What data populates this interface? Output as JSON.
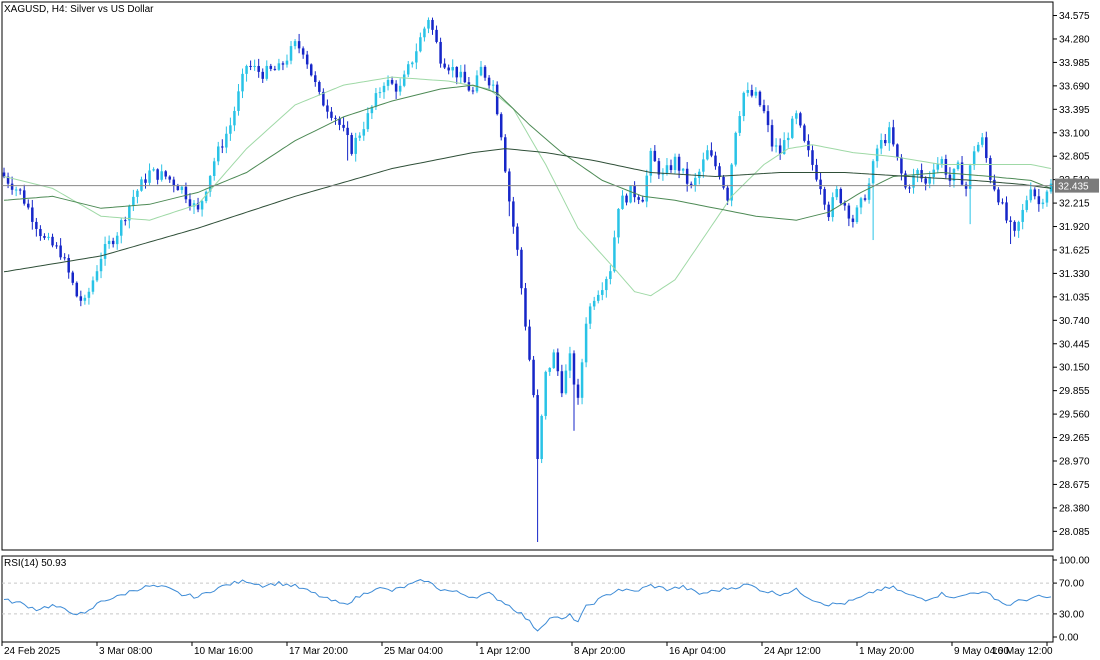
{
  "window": {
    "title": "XAGUSD, H4:  Silver vs US Dollar",
    "current_price": "32.435",
    "rsi_label": "RSI(14) 50.93"
  },
  "colors": {
    "bull": "#29c3e6",
    "bear": "#1626c8",
    "ma_fast": "#9fd9a6",
    "ma_mid": "#4d8a55",
    "ma_slow": "#2f4f38",
    "rsi": "#3d8bd6",
    "grid": "#c8c8c8",
    "price_line": "#8a8a8a"
  },
  "chart_data": [
    {
      "type": "candlestick",
      "title": "XAGUSD, H4:  Silver vs US Dollar",
      "ylim": [
        27.85,
        34.72
      ],
      "y_ticks": [
        "34.575",
        "34.280",
        "33.985",
        "33.690",
        "33.395",
        "33.100",
        "32.805",
        "32.510",
        "32.215",
        "31.920",
        "31.625",
        "31.330",
        "31.035",
        "30.740",
        "30.445",
        "30.150",
        "29.855",
        "29.560",
        "29.265",
        "28.970",
        "28.675",
        "28.380",
        "28.085"
      ],
      "x_labels": [
        "24 Feb 2025",
        "3 Mar 08:00",
        "10 Mar 16:00",
        "17 Mar 20:00",
        "25 Mar 04:00",
        "1 Apr 12:00",
        "8 Apr 20:00",
        "16 Apr 04:00",
        "24 Apr 12:00",
        "1 May 20:00",
        "9 May 04:00",
        "16 May 12:00"
      ],
      "current_price": 32.435,
      "close_anchors": [
        [
          0,
          32.55
        ],
        [
          4,
          32.35
        ],
        [
          8,
          31.95
        ],
        [
          10,
          31.75
        ],
        [
          14,
          31.6
        ],
        [
          18,
          31.05
        ],
        [
          20,
          30.95
        ],
        [
          24,
          31.55
        ],
        [
          28,
          31.85
        ],
        [
          32,
          32.3
        ],
        [
          36,
          32.6
        ],
        [
          40,
          32.55
        ],
        [
          44,
          32.4
        ],
        [
          48,
          32.1
        ],
        [
          52,
          32.75
        ],
        [
          56,
          33.2
        ],
        [
          60,
          33.95
        ],
        [
          64,
          33.85
        ],
        [
          68,
          33.9
        ],
        [
          72,
          34.2
        ],
        [
          74,
          34.15
        ],
        [
          78,
          33.55
        ],
        [
          82,
          33.3
        ],
        [
          86,
          32.9
        ],
        [
          90,
          33.3
        ],
        [
          94,
          33.75
        ],
        [
          98,
          33.65
        ],
        [
          102,
          34.15
        ],
        [
          105,
          34.55
        ],
        [
          108,
          34.05
        ],
        [
          112,
          33.85
        ],
        [
          116,
          33.6
        ],
        [
          118,
          33.9
        ],
        [
          121,
          33.7
        ],
        [
          123,
          33.1
        ],
        [
          125,
          32.25
        ],
        [
          127,
          31.6
        ],
        [
          129,
          30.7
        ],
        [
          131,
          29.8
        ],
        [
          132,
          28.95
        ],
        [
          134,
          30.05
        ],
        [
          136,
          30.3
        ],
        [
          138,
          29.9
        ],
        [
          140,
          30.25
        ],
        [
          142,
          29.7
        ],
        [
          144,
          30.75
        ],
        [
          146,
          31.05
        ],
        [
          148,
          31.2
        ],
        [
          150,
          31.4
        ],
        [
          152,
          32.2
        ],
        [
          155,
          32.35
        ],
        [
          158,
          32.3
        ],
        [
          160,
          32.8
        ],
        [
          163,
          32.55
        ],
        [
          166,
          32.75
        ],
        [
          170,
          32.4
        ],
        [
          172,
          32.6
        ],
        [
          174,
          32.85
        ],
        [
          177,
          32.6
        ],
        [
          179,
          32.3
        ],
        [
          181,
          33.15
        ],
        [
          183,
          33.6
        ],
        [
          186,
          33.55
        ],
        [
          188,
          33.35
        ],
        [
          190,
          32.95
        ],
        [
          192,
          32.85
        ],
        [
          194,
          33.1
        ],
        [
          196,
          33.3
        ],
        [
          198,
          32.95
        ],
        [
          200,
          32.7
        ],
        [
          202,
          32.45
        ],
        [
          204,
          32.1
        ],
        [
          206,
          32.35
        ],
        [
          208,
          32.2
        ],
        [
          210,
          32.0
        ],
        [
          212,
          32.2
        ],
        [
          214,
          32.45
        ],
        [
          216,
          32.9
        ],
        [
          219,
          33.1
        ],
        [
          221,
          32.75
        ],
        [
          223,
          32.4
        ],
        [
          226,
          32.6
        ],
        [
          228,
          32.45
        ],
        [
          230,
          32.7
        ],
        [
          232,
          32.75
        ],
        [
          234,
          32.5
        ],
        [
          236,
          32.65
        ],
        [
          238,
          32.4
        ],
        [
          240,
          32.9
        ],
        [
          242,
          33.0
        ],
        [
          244,
          32.55
        ],
        [
          246,
          32.3
        ],
        [
          248,
          32.0
        ],
        [
          250,
          31.8
        ],
        [
          252,
          32.1
        ],
        [
          254,
          32.45
        ],
        [
          256,
          32.2
        ],
        [
          258,
          32.4
        ],
        [
          259,
          32.435
        ]
      ],
      "low_spikes": [
        [
          85,
          32.75
        ],
        [
          125,
          32.05
        ],
        [
          132,
          27.95
        ],
        [
          141,
          29.35
        ],
        [
          215,
          31.75
        ],
        [
          239,
          31.95
        ],
        [
          249,
          31.7
        ]
      ],
      "moving_average_anchors": {
        "fast": [
          [
            0,
            32.55
          ],
          [
            12,
            32.4
          ],
          [
            24,
            32.05
          ],
          [
            36,
            32.0
          ],
          [
            48,
            32.2
          ],
          [
            60,
            32.9
          ],
          [
            72,
            33.45
          ],
          [
            84,
            33.7
          ],
          [
            96,
            33.8
          ],
          [
            110,
            33.75
          ],
          [
            120,
            33.65
          ],
          [
            126,
            33.4
          ],
          [
            134,
            32.7
          ],
          [
            142,
            31.9
          ],
          [
            150,
            31.45
          ],
          [
            156,
            31.1
          ],
          [
            160,
            31.05
          ],
          [
            166,
            31.25
          ],
          [
            172,
            31.7
          ],
          [
            180,
            32.3
          ],
          [
            188,
            32.7
          ],
          [
            194,
            32.9
          ],
          [
            200,
            32.95
          ],
          [
            210,
            32.85
          ],
          [
            220,
            32.8
          ],
          [
            232,
            32.7
          ],
          [
            244,
            32.7
          ],
          [
            254,
            32.7
          ],
          [
            259,
            32.65
          ]
        ],
        "mid": [
          [
            0,
            32.25
          ],
          [
            12,
            32.3
          ],
          [
            24,
            32.15
          ],
          [
            36,
            32.2
          ],
          [
            48,
            32.35
          ],
          [
            60,
            32.6
          ],
          [
            72,
            33.0
          ],
          [
            84,
            33.3
          ],
          [
            96,
            33.5
          ],
          [
            108,
            33.65
          ],
          [
            116,
            33.7
          ],
          [
            122,
            33.6
          ],
          [
            130,
            33.2
          ],
          [
            138,
            32.85
          ],
          [
            148,
            32.5
          ],
          [
            158,
            32.3
          ],
          [
            166,
            32.25
          ],
          [
            176,
            32.15
          ],
          [
            186,
            32.05
          ],
          [
            196,
            32.0
          ],
          [
            204,
            32.1
          ],
          [
            212,
            32.35
          ],
          [
            220,
            32.55
          ],
          [
            232,
            32.6
          ],
          [
            244,
            32.55
          ],
          [
            254,
            32.5
          ],
          [
            259,
            32.4
          ]
        ],
        "slow": [
          [
            0,
            31.35
          ],
          [
            24,
            31.55
          ],
          [
            48,
            31.9
          ],
          [
            72,
            32.3
          ],
          [
            96,
            32.65
          ],
          [
            116,
            32.85
          ],
          [
            124,
            32.9
          ],
          [
            134,
            32.85
          ],
          [
            146,
            32.75
          ],
          [
            160,
            32.6
          ],
          [
            176,
            32.55
          ],
          [
            192,
            32.6
          ],
          [
            208,
            32.6
          ],
          [
            224,
            32.55
          ],
          [
            240,
            32.5
          ],
          [
            252,
            32.45
          ],
          [
            259,
            32.4
          ]
        ]
      }
    },
    {
      "type": "line",
      "title": "RSI(14) 50.93",
      "ylim": [
        0,
        100
      ],
      "y_ticks": [
        "100.00",
        "70.00",
        "30.00",
        "0.00"
      ],
      "levels": [
        70,
        30
      ],
      "last_value": 50.93,
      "anchors": [
        [
          0,
          48
        ],
        [
          4,
          44
        ],
        [
          8,
          36
        ],
        [
          12,
          41
        ],
        [
          16,
          33
        ],
        [
          20,
          29
        ],
        [
          24,
          47
        ],
        [
          28,
          52
        ],
        [
          32,
          61
        ],
        [
          36,
          66
        ],
        [
          40,
          64
        ],
        [
          44,
          55
        ],
        [
          48,
          52
        ],
        [
          52,
          62
        ],
        [
          56,
          69
        ],
        [
          60,
          73
        ],
        [
          64,
          67
        ],
        [
          68,
          70
        ],
        [
          72,
          66
        ],
        [
          76,
          58
        ],
        [
          80,
          49
        ],
        [
          84,
          42
        ],
        [
          88,
          53
        ],
        [
          92,
          64
        ],
        [
          96,
          60
        ],
        [
          100,
          67
        ],
        [
          104,
          74
        ],
        [
          108,
          62
        ],
        [
          112,
          58
        ],
        [
          116,
          52
        ],
        [
          120,
          56
        ],
        [
          124,
          44
        ],
        [
          128,
          30
        ],
        [
          132,
          9
        ],
        [
          134,
          20
        ],
        [
          136,
          27
        ],
        [
          138,
          22
        ],
        [
          140,
          28
        ],
        [
          142,
          20
        ],
        [
          144,
          39
        ],
        [
          148,
          51
        ],
        [
          152,
          62
        ],
        [
          156,
          59
        ],
        [
          160,
          67
        ],
        [
          164,
          62
        ],
        [
          168,
          65
        ],
        [
          172,
          56
        ],
        [
          176,
          60
        ],
        [
          180,
          64
        ],
        [
          184,
          68
        ],
        [
          188,
          60
        ],
        [
          192,
          56
        ],
        [
          196,
          61
        ],
        [
          200,
          49
        ],
        [
          204,
          42
        ],
        [
          208,
          44
        ],
        [
          212,
          51
        ],
        [
          216,
          61
        ],
        [
          220,
          64
        ],
        [
          224,
          54
        ],
        [
          228,
          49
        ],
        [
          232,
          56
        ],
        [
          236,
          51
        ],
        [
          240,
          59
        ],
        [
          244,
          55
        ],
        [
          248,
          41
        ],
        [
          252,
          48
        ],
        [
          256,
          52
        ],
        [
          259,
          51
        ]
      ]
    }
  ]
}
